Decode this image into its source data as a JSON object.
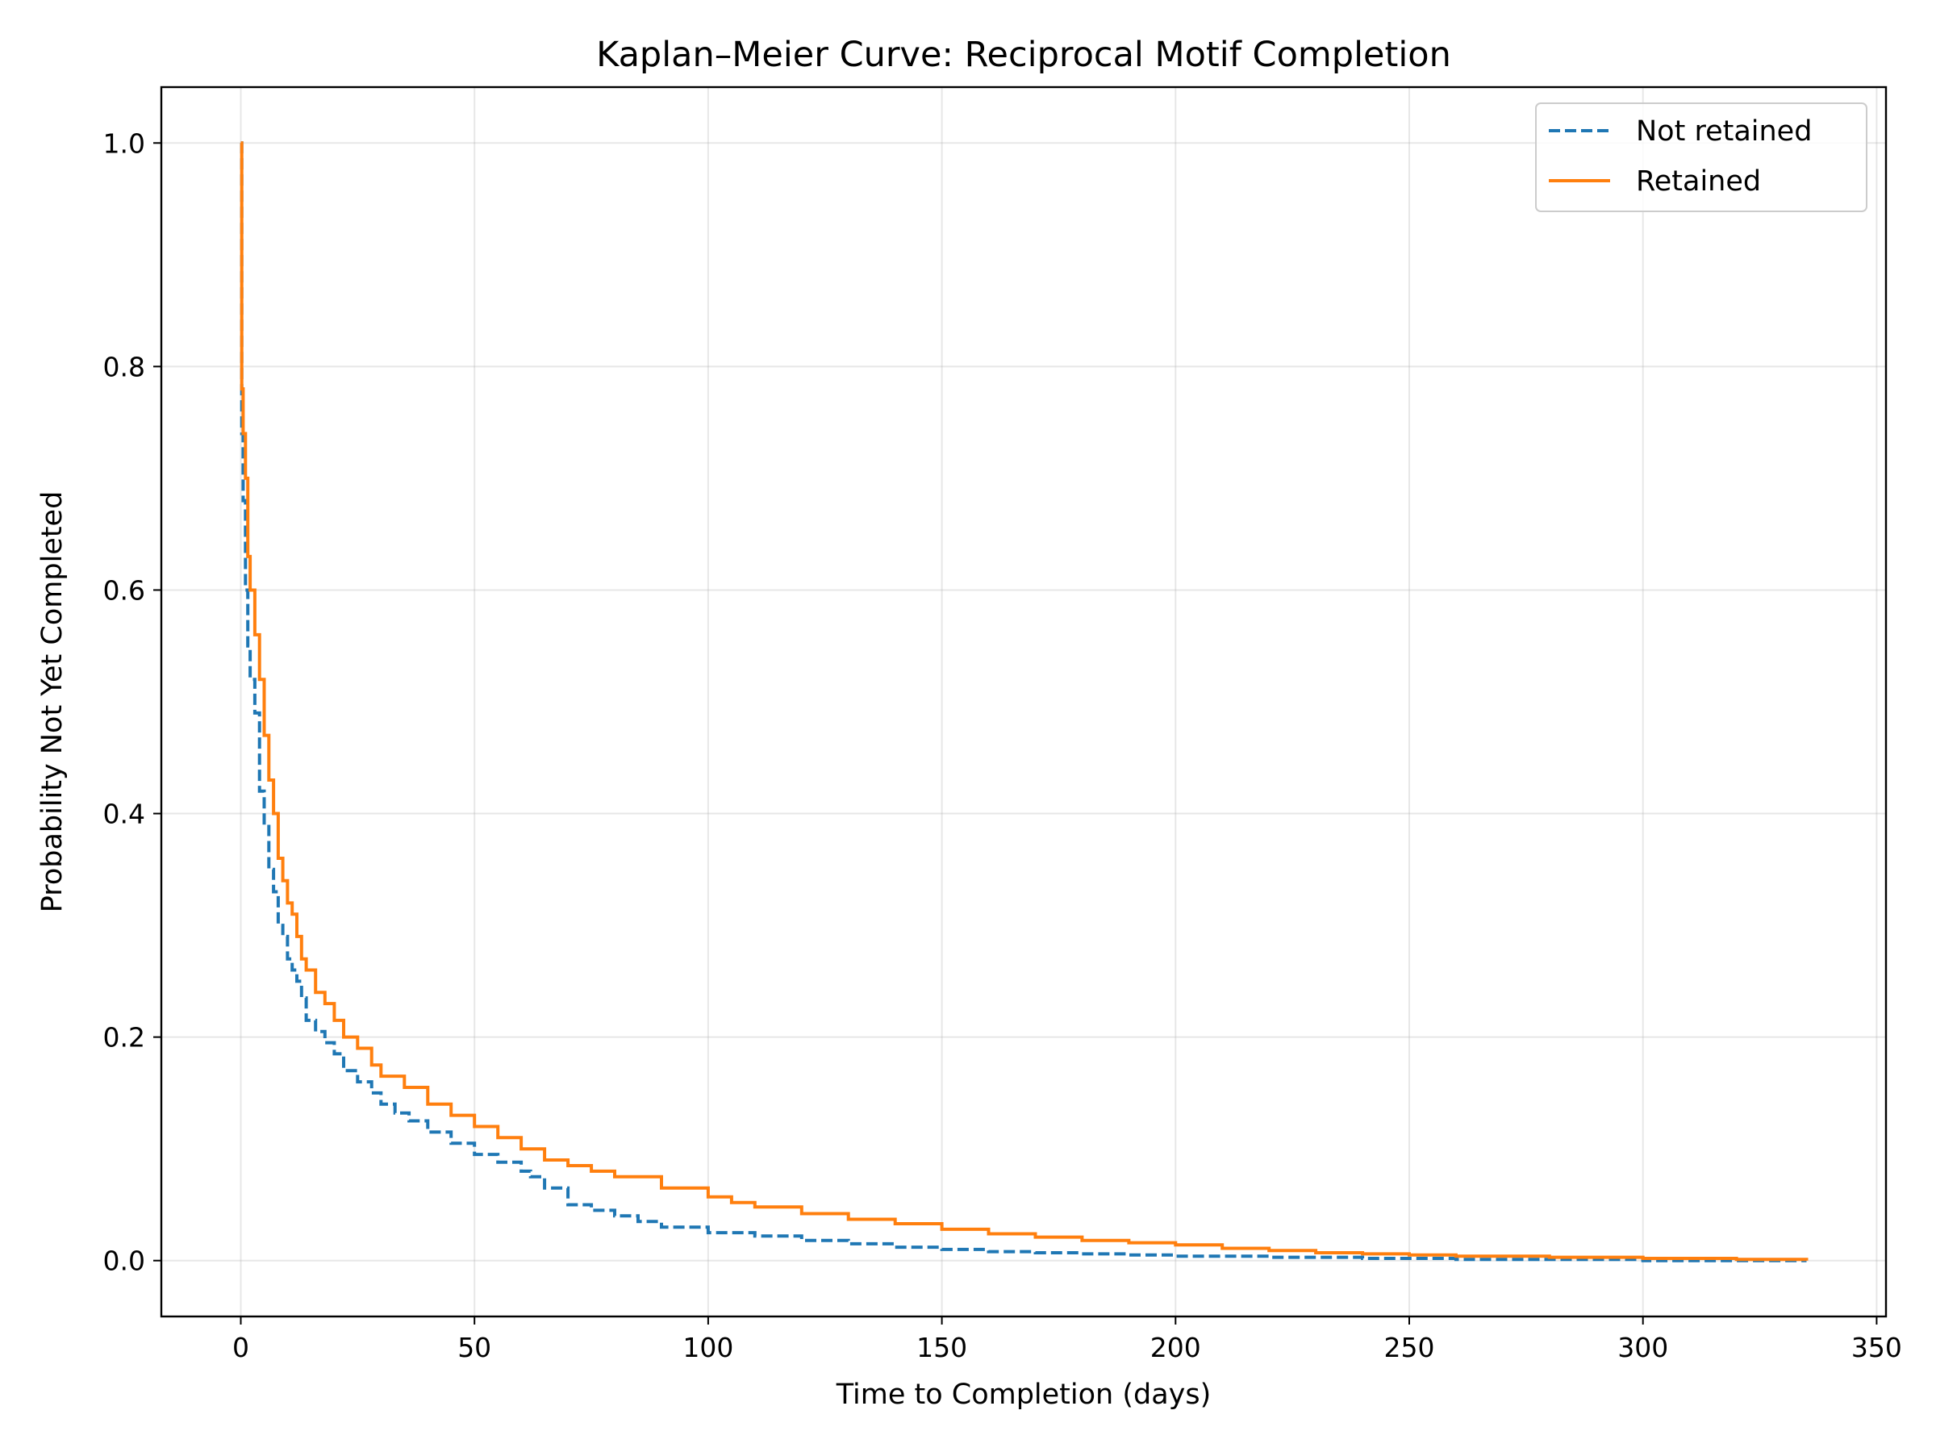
{
  "chart_data": {
    "type": "line",
    "title": "Kaplan–Meier Curve: Reciprocal Motif Completion",
    "xlabel": "Time to Completion (days)",
    "ylabel": "Probability Not Yet Completed",
    "xlim": [
      -17,
      352
    ],
    "ylim": [
      -0.05,
      1.05
    ],
    "xticks": [
      0,
      50,
      100,
      150,
      200,
      250,
      300,
      350
    ],
    "yticks": [
      0.0,
      0.2,
      0.4,
      0.6,
      0.8,
      1.0
    ],
    "xtick_labels": [
      "0",
      "50",
      "100",
      "150",
      "200",
      "250",
      "300",
      "350"
    ],
    "ytick_labels": [
      "0.0",
      "0.2",
      "0.4",
      "0.6",
      "0.8",
      "1.0"
    ],
    "grid": true,
    "legend_position": "top-right",
    "step": true,
    "series": [
      {
        "name": "Not retained",
        "color": "#1f77b4",
        "style": "dashed",
        "x": [
          0,
          0.2,
          0.5,
          1,
          1.5,
          2,
          3,
          4,
          5,
          6,
          7,
          8,
          9,
          10,
          11,
          12,
          13,
          14,
          16,
          18,
          20,
          22,
          25,
          28,
          30,
          33,
          36,
          40,
          45,
          50,
          55,
          60,
          62,
          65,
          70,
          75,
          80,
          85,
          90,
          100,
          110,
          120,
          130,
          140,
          150,
          160,
          170,
          180,
          190,
          200,
          220,
          240,
          260,
          280,
          300,
          320,
          335
        ],
        "y": [
          1.0,
          0.74,
          0.68,
          0.6,
          0.55,
          0.52,
          0.49,
          0.42,
          0.39,
          0.35,
          0.33,
          0.3,
          0.29,
          0.27,
          0.26,
          0.25,
          0.235,
          0.215,
          0.205,
          0.195,
          0.185,
          0.17,
          0.16,
          0.15,
          0.14,
          0.132,
          0.125,
          0.115,
          0.105,
          0.095,
          0.088,
          0.08,
          0.075,
          0.065,
          0.05,
          0.045,
          0.04,
          0.035,
          0.03,
          0.025,
          0.022,
          0.018,
          0.015,
          0.012,
          0.01,
          0.008,
          0.007,
          0.006,
          0.005,
          0.004,
          0.003,
          0.002,
          0.001,
          0.001,
          0.0,
          0.0,
          0.0
        ]
      },
      {
        "name": "Retained",
        "color": "#ff7f0e",
        "style": "solid",
        "x": [
          0,
          0.2,
          0.5,
          1,
          1.5,
          2,
          3,
          4,
          5,
          6,
          7,
          8,
          9,
          10,
          11,
          12,
          13,
          14,
          16,
          18,
          20,
          22,
          25,
          28,
          30,
          35,
          40,
          45,
          50,
          55,
          60,
          65,
          70,
          75,
          80,
          90,
          100,
          105,
          110,
          120,
          130,
          140,
          150,
          160,
          170,
          180,
          190,
          200,
          210,
          220,
          230,
          240,
          250,
          260,
          280,
          300,
          320,
          335
        ],
        "y": [
          1.0,
          0.78,
          0.74,
          0.7,
          0.63,
          0.6,
          0.56,
          0.52,
          0.47,
          0.43,
          0.4,
          0.36,
          0.34,
          0.32,
          0.31,
          0.29,
          0.27,
          0.26,
          0.24,
          0.23,
          0.215,
          0.2,
          0.19,
          0.175,
          0.165,
          0.155,
          0.14,
          0.13,
          0.12,
          0.11,
          0.1,
          0.09,
          0.085,
          0.08,
          0.075,
          0.065,
          0.057,
          0.052,
          0.048,
          0.042,
          0.037,
          0.033,
          0.028,
          0.024,
          0.021,
          0.018,
          0.016,
          0.014,
          0.011,
          0.009,
          0.007,
          0.006,
          0.005,
          0.004,
          0.003,
          0.002,
          0.001,
          0.0
        ]
      }
    ]
  }
}
